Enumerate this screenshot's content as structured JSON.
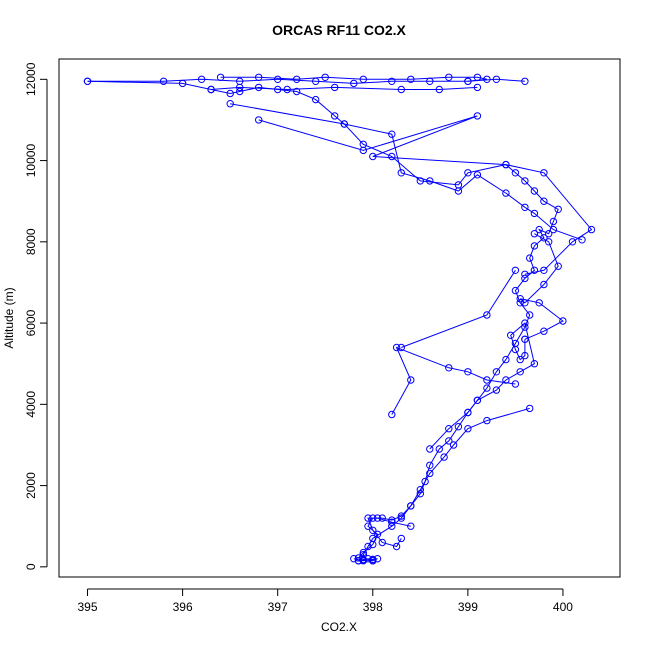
{
  "chart_data": {
    "type": "line",
    "title": "ORCAS RF11 CO2.X",
    "xlabel": "CO2.X",
    "ylabel": "Altitude (m)",
    "xlim": [
      394.7,
      400.6
    ],
    "ylim": [
      -250,
      12500
    ],
    "xticks": [
      395,
      396,
      397,
      398,
      399,
      400
    ],
    "yticks": [
      0,
      2000,
      4000,
      6000,
      8000,
      10000,
      12000
    ],
    "grid": false,
    "legend": "none",
    "marker": "open-circle",
    "series_color": "#0000ff",
    "series": [
      {
        "x": [
          398.0,
          397.9,
          397.85,
          397.9,
          398.0,
          398.05,
          397.95,
          398.0,
          398.1,
          398.2,
          398.3,
          398.4,
          398.5,
          398.55,
          398.6,
          398.7,
          398.8,
          398.9,
          399.0,
          399.1,
          399.2,
          399.3,
          399.4,
          399.5,
          399.6,
          399.65,
          399.55,
          399.5,
          399.6,
          399.7,
          399.65,
          399.7,
          399.8,
          399.75,
          399.85,
          399.9,
          399.95,
          399.8,
          399.7,
          399.6,
          399.5,
          399.4,
          399.0,
          398.9,
          398.5,
          398.2,
          397.9,
          397.7,
          397.6,
          397.4,
          397.2,
          397.0,
          396.8,
          396.6,
          396.5,
          396.3,
          396.0,
          395.0
        ],
        "y": [
          150,
          180,
          220,
          350,
          550,
          800,
          1000,
          1200,
          1200,
          1150,
          1250,
          1500,
          1800,
          2100,
          2500,
          2900,
          3100,
          3450,
          3800,
          4100,
          4400,
          4800,
          5100,
          5500,
          5900,
          6200,
          6500,
          6800,
          7100,
          7300,
          7600,
          7900,
          8100,
          8300,
          8200,
          8500,
          8800,
          9000,
          9250,
          9500,
          9700,
          9900,
          9700,
          9400,
          9500,
          10100,
          10400,
          10900,
          11100,
          11500,
          11700,
          11750,
          11800,
          11700,
          11650,
          11750,
          11900,
          11950
        ]
      },
      {
        "x": [
          395.0,
          395.8,
          396.2,
          396.6,
          397.0,
          397.4,
          397.8,
          398.2,
          398.6,
          399.0,
          399.3,
          399.6
        ],
        "y": [
          11950,
          11950,
          12000,
          11950,
          12000,
          11950,
          11900,
          11950,
          11950,
          11950,
          12000,
          11950
        ]
      },
      {
        "x": [
          396.4,
          396.8,
          397.2,
          397.5,
          397.9,
          398.4,
          398.8,
          399.1,
          399.2,
          399.0
        ],
        "y": [
          12050,
          12050,
          12000,
          12050,
          12000,
          12000,
          12050,
          12050,
          12000,
          11950
        ]
      },
      {
        "x": [
          396.3,
          396.6,
          397.1,
          397.6,
          398.3,
          398.7,
          399.1
        ],
        "y": [
          11750,
          11800,
          11750,
          11800,
          11750,
          11750,
          11800
        ]
      },
      {
        "x": [
          396.5,
          397.7,
          398.2,
          398.3,
          398.6,
          398.9,
          399.1,
          399.4,
          399.6,
          399.7,
          399.9,
          400.2
        ],
        "y": [
          11400,
          10900,
          10650,
          9700,
          9500,
          9250,
          9650,
          9200,
          8850,
          8700,
          8300,
          8050
        ]
      },
      {
        "x": [
          396.8,
          397.9,
          399.1,
          398.0,
          399.4,
          399.8,
          400.3,
          400.1,
          399.8,
          399.6
        ],
        "y": [
          11000,
          10250,
          11100,
          10100,
          9900,
          9700,
          8300,
          8000,
          7300,
          7200
        ]
      },
      {
        "x": [
          399.7,
          399.85,
          399.95,
          399.8,
          399.6,
          399.55,
          399.75,
          400.0,
          399.8,
          399.6
        ],
        "y": [
          8200,
          8000,
          7400,
          6950,
          6500,
          6600,
          6500,
          6050,
          5800,
          5600
        ]
      },
      {
        "x": [
          399.6,
          399.6,
          399.55,
          399.5,
          399.45,
          399.6,
          399.7,
          399.55,
          399.4,
          399.3,
          399.1,
          399.0,
          398.8,
          398.6
        ],
        "y": [
          5600,
          5200,
          5100,
          5350,
          5700,
          6000,
          5000,
          4800,
          4600,
          4350,
          4100,
          3800,
          3400,
          2900
        ]
      },
      {
        "x": [
          398.3,
          399.2,
          399.5
        ],
        "y": [
          5400,
          6200,
          7300
        ]
      },
      {
        "x": [
          398.2,
          398.4,
          398.25,
          398.8,
          399.0,
          399.2,
          399.5
        ],
        "y": [
          3750,
          4600,
          5400,
          4900,
          4800,
          4600,
          4500
        ]
      },
      {
        "x": [
          399.65,
          399.2,
          399.0,
          398.85,
          398.75,
          398.6,
          398.5,
          398.4,
          398.3,
          398.2,
          398.0,
          397.95,
          397.9,
          397.85
        ],
        "y": [
          3900,
          3600,
          3400,
          3000,
          2700,
          2300,
          1900,
          1500,
          1200,
          1000,
          700,
          500,
          300,
          150
        ]
      },
      {
        "x": [
          398.4,
          398.2,
          398.05,
          397.95,
          398.0,
          398.1,
          398.25,
          398.3
        ],
        "y": [
          1000,
          1100,
          1200,
          1200,
          900,
          600,
          500,
          700
        ]
      },
      {
        "x": [
          397.8,
          397.9,
          398.0,
          398.05,
          398.0,
          397.9,
          397.95,
          398.0,
          397.85
        ],
        "y": [
          200,
          150,
          180,
          200,
          150,
          170,
          200,
          180,
          150
        ]
      }
    ]
  }
}
